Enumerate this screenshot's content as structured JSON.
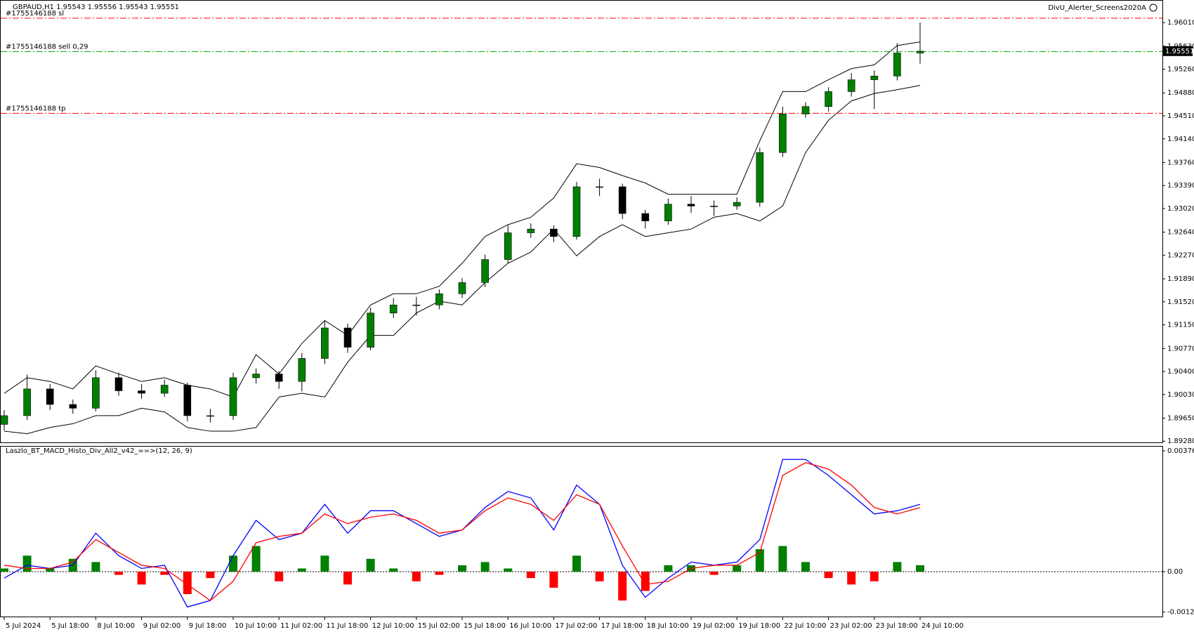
{
  "chart_data": [
    {
      "type": "candlestick",
      "title": "GBPAUD,H1  1.95543 1.95556 1.95543 1.95551",
      "expert": "DivU_Alerter_Screens2020A",
      "categories": [
        "5 Jul 2024",
        null,
        "5 Jul 18:00",
        null,
        "8 Jul 10:00",
        null,
        "9 Jul 02:00",
        null,
        "9 Jul 18:00",
        null,
        "10 Jul 10:00",
        null,
        "11 Jul 02:00",
        null,
        "11 Jul 18:00",
        null,
        "12 Jul 10:00",
        null,
        "15 Jul 02:00",
        null,
        "15 Jul 18:00",
        null,
        "16 Jul 10:00",
        null,
        "17 Jul 02:00",
        null,
        "17 Jul 18:00",
        null,
        "18 Jul 10:00",
        null,
        "19 Jul 02:00",
        null,
        "19 Jul 18:00",
        null,
        "22 Jul 10:00",
        null,
        "23 Jul 02:00",
        null,
        "23 Jul 18:00",
        null,
        "24 Jul 10:00"
      ],
      "open": [
        1.8955,
        1.8969,
        1.9012,
        1.8987,
        1.8981,
        1.903,
        1.9009,
        1.9005,
        1.9018,
        1.8969,
        1.8969,
        1.903,
        1.9036,
        1.9024,
        1.9061,
        1.911,
        1.9079,
        1.9134,
        1.9147,
        1.9147,
        1.9165,
        1.9183,
        1.922,
        1.9263,
        1.9269,
        1.9257,
        1.9337,
        1.9337,
        1.9294,
        1.9282,
        1.9309,
        1.9306,
        1.9306,
        1.9312,
        1.9392,
        1.9454,
        1.9466,
        1.949,
        1.9509,
        1.9515,
        1.9552
      ],
      "high": [
        1.8978,
        1.9035,
        1.902,
        1.8995,
        1.9042,
        1.9038,
        1.902,
        1.9027,
        1.9022,
        1.898,
        1.9038,
        1.9045,
        1.9041,
        1.907,
        1.9121,
        1.9117,
        1.9143,
        1.9158,
        1.916,
        1.9172,
        1.919,
        1.9228,
        1.9275,
        1.9278,
        1.9275,
        1.9345,
        1.935,
        1.9342,
        1.93,
        1.9318,
        1.9322,
        1.9315,
        1.932,
        1.94,
        1.9466,
        1.9473,
        1.9497,
        1.952,
        1.9524,
        1.9568,
        1.9601
      ],
      "low": [
        1.8945,
        1.8962,
        1.8978,
        1.8972,
        1.8976,
        1.9001,
        1.8996,
        1.8999,
        1.896,
        1.8958,
        1.8962,
        1.9021,
        1.9012,
        1.9008,
        1.9052,
        1.907,
        1.9074,
        1.9126,
        1.913,
        1.914,
        1.9158,
        1.9176,
        1.9214,
        1.9255,
        1.9248,
        1.9252,
        1.9322,
        1.9285,
        1.927,
        1.9276,
        1.9295,
        1.929,
        1.93,
        1.9305,
        1.9385,
        1.9448,
        1.9458,
        1.9482,
        1.9462,
        1.9508,
        1.9535
      ],
      "close": [
        1.8969,
        1.9012,
        1.8987,
        1.8981,
        1.903,
        1.9009,
        1.9005,
        1.9018,
        1.8969,
        1.8969,
        1.903,
        1.9036,
        1.9024,
        1.9061,
        1.911,
        1.9079,
        1.9134,
        1.9147,
        1.9147,
        1.9165,
        1.9183,
        1.922,
        1.9263,
        1.9269,
        1.9257,
        1.9337,
        1.9337,
        1.9294,
        1.9282,
        1.9309,
        1.9306,
        1.9306,
        1.9312,
        1.9392,
        1.9454,
        1.9466,
        1.949,
        1.9509,
        1.9515,
        1.9552,
        1.9555
      ],
      "up_color": "#008000",
      "down_color": "#000000",
      "bands": {
        "color": "#000000",
        "upper": [
          1.9005,
          1.903,
          1.9024,
          1.9012,
          1.9049,
          1.9036,
          1.9024,
          1.903,
          1.9018,
          1.9012,
          1.8999,
          1.9067,
          1.9036,
          1.9085,
          1.9122,
          1.9098,
          1.9147,
          1.9165,
          1.9165,
          1.9177,
          1.9214,
          1.9257,
          1.9276,
          1.9288,
          1.9319,
          1.9374,
          1.9368,
          1.9355,
          1.9343,
          1.9325,
          1.9325,
          1.9325,
          1.9325,
          1.9411,
          1.949,
          1.949,
          1.9509,
          1.9527,
          1.9533,
          1.9564,
          1.957
        ],
        "lower": [
          1.8944,
          1.894,
          1.895,
          1.8956,
          1.8969,
          1.8969,
          1.8981,
          1.8975,
          1.895,
          1.8944,
          1.8944,
          1.895,
          1.8999,
          1.9005,
          1.8999,
          1.9055,
          1.9098,
          1.9098,
          1.9134,
          1.9153,
          1.9147,
          1.9183,
          1.9214,
          1.9232,
          1.9269,
          1.9226,
          1.9257,
          1.9276,
          1.9257,
          1.9263,
          1.9269,
          1.9288,
          1.9294,
          1.9282,
          1.9306,
          1.9392,
          1.9444,
          1.9475,
          1.9487,
          1.9493,
          1.95
        ]
      },
      "levels": [
        {
          "label": "#1755146188 sl",
          "value": 1.9608,
          "color": "#ff0000"
        },
        {
          "label": "#1755146188 sell 0,29",
          "value": 1.95543,
          "color": "#00b000"
        },
        {
          "label": "#1755146188 tp",
          "value": 1.9455,
          "color": "#ff0000"
        }
      ],
      "current_price": 1.95551,
      "ylim": [
        1.8926,
        1.9635
      ],
      "yticks": [
        {
          "value": 1.9601,
          "label": "1.96010"
        },
        {
          "value": 1.9563,
          "label": "1.95630"
        },
        {
          "value": 1.9526,
          "label": "1.95260"
        },
        {
          "value": 1.9488,
          "label": "1.94880"
        },
        {
          "value": 1.9451,
          "label": "1.94510"
        },
        {
          "value": 1.9414,
          "label": "1.94140"
        },
        {
          "value": 1.9376,
          "label": "1.93760"
        },
        {
          "value": 1.9339,
          "label": "1.93390"
        },
        {
          "value": 1.9302,
          "label": "1.93020"
        },
        {
          "value": 1.9264,
          "label": "1.92640"
        },
        {
          "value": 1.9227,
          "label": "1.92270"
        },
        {
          "value": 1.9189,
          "label": "1.91890"
        },
        {
          "value": 1.9152,
          "label": "1.91520"
        },
        {
          "value": 1.9115,
          "label": "1.91150"
        },
        {
          "value": 1.9077,
          "label": "1.90770"
        },
        {
          "value": 1.904,
          "label": "1.90400"
        },
        {
          "value": 1.9003,
          "label": "1.90030"
        },
        {
          "value": 1.8965,
          "label": "1.89650"
        },
        {
          "value": 1.8928,
          "label": "1.89280"
        }
      ]
    },
    {
      "type": "macd",
      "title": "Laszlo_BT_MACD_Histo_Div_All2_v42_==>(12, 26, 9)",
      "histogram": [
        0.0001,
        0.0005,
        0.0001,
        0.0004,
        0.0003,
        -0.0001,
        -0.0004,
        -0.0001,
        -0.0007,
        -0.0002,
        0.0005,
        0.0008,
        -0.0003,
        0.0001,
        0.0005,
        -0.0004,
        0.0004,
        0.0001,
        -0.0003,
        -0.0001,
        0.0002,
        0.0003,
        0.0001,
        -0.0002,
        -0.0005,
        0.0005,
        -0.0003,
        -0.0009,
        -0.0006,
        0.0002,
        0.0002,
        -0.0001,
        0.0002,
        0.0007,
        0.0008,
        0.0003,
        -0.0002,
        -0.0004,
        -0.0003,
        0.0003,
        0.0002
      ],
      "up_color": "#008000",
      "down_color": "#ff0000",
      "lines": [
        {
          "color": "#0000ff",
          "values": [
            -0.0002,
            0.0002,
            0.0001,
            0.0002,
            0.0012,
            0.0005,
            0.0001,
            0.0002,
            -0.0011,
            -0.0009,
            0.0005,
            0.0016,
            0.001,
            0.0012,
            0.0021,
            0.0012,
            0.0019,
            0.0019,
            0.0015,
            0.0011,
            0.0013,
            0.002,
            0.0025,
            0.0023,
            0.0013,
            0.0027,
            0.0021,
            0.0002,
            -0.0008,
            -0.0002,
            0.0003,
            0.0002,
            0.0003,
            0.001,
            0.0035,
            0.0035,
            0.003,
            0.0024,
            0.0018,
            0.0019,
            0.0021
          ]
        },
        {
          "color": "#ff0000",
          "values": [
            0.0002,
            0.0001,
            0.0001,
            0.0003,
            0.001,
            0.0006,
            0.0002,
            0.0001,
            -0.0004,
            -0.0009,
            -0.0003,
            0.0009,
            0.0011,
            0.0012,
            0.0018,
            0.0015,
            0.0017,
            0.0018,
            0.0016,
            0.0012,
            0.0013,
            0.0019,
            0.0023,
            0.0021,
            0.0016,
            0.0024,
            0.0021,
            0.0008,
            -0.0004,
            -0.0003,
            0.0001,
            0.0002,
            0.0002,
            0.0006,
            0.003,
            0.0034,
            0.0032,
            0.0027,
            0.002,
            0.0018,
            0.002
          ]
        }
      ],
      "ylim": [
        -0.0014,
        0.0039
      ],
      "yticks": [
        0.003768,
        {
          "value": 0,
          "label": "0.00"
        },
        -0.001263
      ]
    }
  ]
}
